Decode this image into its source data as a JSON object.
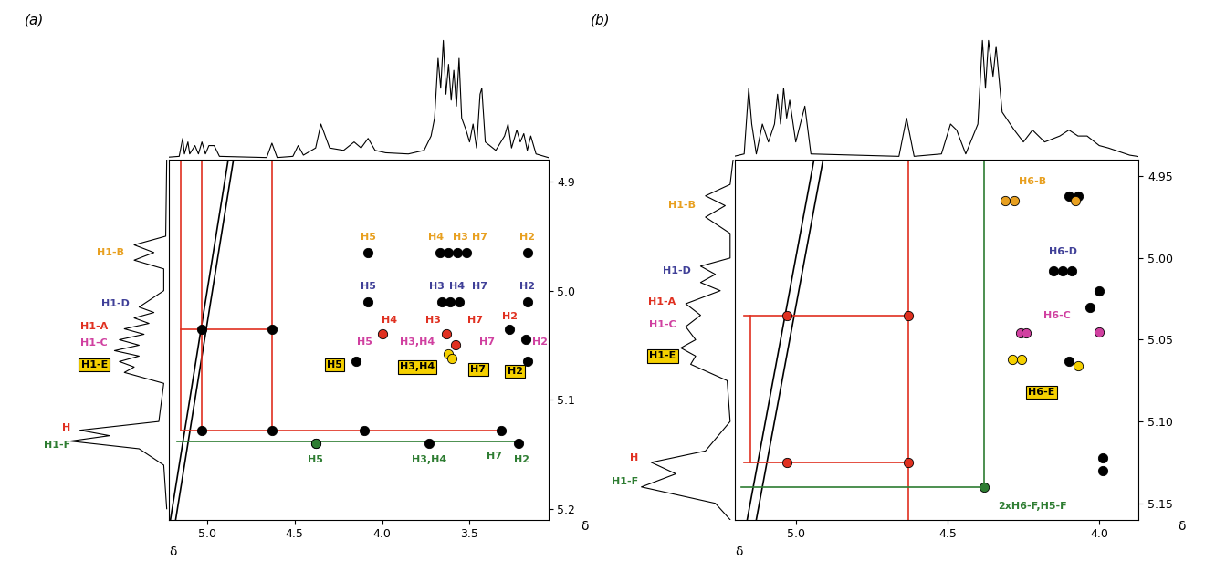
{
  "chart_data": [
    {
      "type": "scatter",
      "title": "(a)",
      "xlabel": "δ",
      "ylabel": "δ",
      "xlim": [
        5.22,
        3.05
      ],
      "ylim": [
        5.21,
        4.88
      ],
      "xticks": [
        5.0,
        4.5,
        4.0,
        3.5
      ],
      "yticks": [
        4.9,
        5.0,
        5.1,
        5.2
      ],
      "top_spectrum": {
        "tick_labels": false,
        "ylim": [
          0,
          1.1
        ],
        "x": [
          5.25,
          5.16,
          5.14,
          5.13,
          5.11,
          5.1,
          5.07,
          5.05,
          5.03,
          5.01,
          4.99,
          4.96,
          4.93,
          4.66,
          4.63,
          4.6,
          4.51,
          4.48,
          4.45,
          4.38,
          4.35,
          4.33,
          4.3,
          4.22,
          4.16,
          4.12,
          4.08,
          4.04,
          3.98,
          3.85,
          3.76,
          3.72,
          3.7,
          3.68,
          3.665,
          3.65,
          3.635,
          3.62,
          3.605,
          3.59,
          3.575,
          3.56,
          3.545,
          3.52,
          3.5,
          3.48,
          3.46,
          3.44,
          3.43,
          3.41,
          3.35,
          3.3,
          3.28,
          3.26,
          3.23,
          3.21,
          3.19,
          3.17,
          3.15,
          3.12,
          3.05
        ],
        "values": [
          0.02,
          0.03,
          0.18,
          0.05,
          0.15,
          0.05,
          0.12,
          0.05,
          0.15,
          0.05,
          0.12,
          0.12,
          0.03,
          0.02,
          0.14,
          0.02,
          0.03,
          0.12,
          0.04,
          0.1,
          0.3,
          0.22,
          0.1,
          0.08,
          0.15,
          0.1,
          0.18,
          0.08,
          0.06,
          0.05,
          0.08,
          0.2,
          0.35,
          0.85,
          0.6,
          1.0,
          0.55,
          0.8,
          0.5,
          0.75,
          0.45,
          0.85,
          0.35,
          0.25,
          0.15,
          0.3,
          0.1,
          0.55,
          0.6,
          0.15,
          0.08,
          0.2,
          0.3,
          0.1,
          0.25,
          0.15,
          0.22,
          0.08,
          0.2,
          0.05,
          0.02
        ]
      },
      "left_spectrum": {
        "tick_labels": false,
        "xlim": [
          1.1,
          0
        ],
        "y": [
          4.88,
          4.95,
          4.958,
          4.965,
          4.972,
          4.98,
          5.0,
          5.015,
          5.02,
          5.025,
          5.03,
          5.035,
          5.04,
          5.045,
          5.05,
          5.055,
          5.06,
          5.065,
          5.07,
          5.075,
          5.085,
          5.12,
          5.128,
          5.133,
          5.138,
          5.145,
          5.16,
          5.2
        ],
        "values": [
          0.02,
          0.03,
          0.35,
          0.15,
          0.35,
          0.05,
          0.05,
          0.3,
          0.15,
          0.35,
          0.2,
          0.45,
          0.25,
          0.5,
          0.3,
          0.55,
          0.3,
          0.5,
          0.35,
          0.45,
          0.05,
          0.1,
          0.9,
          0.6,
          1.0,
          0.3,
          0.05,
          0.02
        ],
        "annotations": [
          {
            "text": "H1-B",
            "x": 0.45,
            "y": 4.965,
            "color": "#e8a020"
          },
          {
            "text": "H1-D",
            "x": 0.4,
            "y": 5.012,
            "color": "#404098"
          },
          {
            "text": "H1-A",
            "x": 0.62,
            "y": 5.033,
            "color": "#e03020"
          },
          {
            "text": "H1-C",
            "x": 0.62,
            "y": 5.048,
            "color": "#d040a0"
          },
          {
            "text": "H",
            "x": 1.0,
            "y": 5.126,
            "color": "#e03020"
          },
          {
            "text": "H1-F",
            "x": 1.0,
            "y": 5.142,
            "color": "#2e7d32"
          }
        ],
        "boxed_annotations": [
          {
            "text": "H1-E",
            "x": 0.62,
            "y": 5.068,
            "color": "#f5d000"
          }
        ]
      },
      "series": [
        {
          "color": "#000000",
          "x": [
            4.08,
            3.67,
            3.62,
            3.57,
            3.52,
            3.17,
            4.08,
            3.66,
            3.61,
            3.56,
            3.17,
            3.27,
            3.18,
            3.17,
            4.15,
            4.38,
            3.73,
            3.22,
            5.03,
            4.63,
            4.1,
            3.32,
            5.03,
            4.63
          ],
          "y": [
            4.965,
            4.965,
            4.965,
            4.965,
            4.965,
            4.965,
            5.01,
            5.01,
            5.01,
            5.01,
            5.01,
            5.035,
            5.045,
            5.065,
            5.065,
            5.14,
            5.14,
            5.14,
            5.128,
            5.128,
            5.128,
            5.128,
            5.035,
            5.035
          ]
        },
        {
          "color": "#e03020",
          "x": [
            4.0,
            3.63,
            3.58
          ],
          "y": [
            5.04,
            5.04,
            5.05
          ]
        },
        {
          "color": "#f5d000",
          "x": [
            3.62,
            3.6
          ],
          "y": [
            5.058,
            5.062
          ]
        },
        {
          "color": "#2e7d32",
          "x": [
            4.38
          ],
          "y": [
            5.14
          ]
        }
      ],
      "connectors": [
        {
          "color": "#000000",
          "x": [
            5.22,
            4.88
          ],
          "y": [
            5.22,
            4.88
          ]
        },
        {
          "color": "#000000",
          "x": [
            5.19,
            4.85
          ],
          "y": [
            5.22,
            4.88
          ]
        },
        {
          "color": "#e03020",
          "x": [
            5.15,
            5.15
          ],
          "y": [
            4.88,
            5.128
          ]
        },
        {
          "color": "#e03020",
          "x": [
            5.03,
            5.03
          ],
          "y": [
            4.88,
            5.128
          ]
        },
        {
          "color": "#e03020",
          "x": [
            4.63,
            4.63
          ],
          "y": [
            4.88,
            5.128
          ]
        },
        {
          "color": "#e03020",
          "x": [
            5.15,
            4.63
          ],
          "y": [
            5.035,
            5.035
          ]
        },
        {
          "color": "#e03020",
          "x": [
            5.15,
            3.32
          ],
          "y": [
            5.128,
            5.128
          ]
        },
        {
          "color": "#2e7d32",
          "x": [
            5.17,
            3.2
          ],
          "y": [
            5.138,
            5.138
          ]
        }
      ],
      "annotations": [
        {
          "text": "H5",
          "x": 4.08,
          "y": 4.951,
          "color": "#e8a020"
        },
        {
          "text": "H4",
          "x": 3.69,
          "y": 4.951,
          "color": "#e8a020"
        },
        {
          "text": "H3",
          "x": 3.55,
          "y": 4.951,
          "color": "#e8a020"
        },
        {
          "text": "H7",
          "x": 3.44,
          "y": 4.951,
          "color": "#e8a020"
        },
        {
          "text": "H2",
          "x": 3.17,
          "y": 4.951,
          "color": "#e8a020"
        },
        {
          "text": "H5",
          "x": 4.08,
          "y": 4.996,
          "color": "#404098"
        },
        {
          "text": "H3",
          "x": 3.69,
          "y": 4.996,
          "color": "#404098"
        },
        {
          "text": "H4",
          "x": 3.57,
          "y": 4.996,
          "color": "#404098"
        },
        {
          "text": "H7",
          "x": 3.44,
          "y": 4.996,
          "color": "#404098"
        },
        {
          "text": "H2",
          "x": 3.17,
          "y": 4.996,
          "color": "#404098"
        },
        {
          "text": "H4",
          "x": 3.96,
          "y": 5.027,
          "color": "#e03020"
        },
        {
          "text": "H3",
          "x": 3.71,
          "y": 5.027,
          "color": "#e03020"
        },
        {
          "text": "H7",
          "x": 3.47,
          "y": 5.027,
          "color": "#e03020"
        },
        {
          "text": "H2",
          "x": 3.27,
          "y": 5.024,
          "color": "#e03020"
        },
        {
          "text": "H5",
          "x": 4.1,
          "y": 5.047,
          "color": "#d040a0"
        },
        {
          "text": "H3,H4",
          "x": 3.8,
          "y": 5.047,
          "color": "#d040a0"
        },
        {
          "text": "H7",
          "x": 3.4,
          "y": 5.047,
          "color": "#d040a0"
        },
        {
          "text": "H2",
          "x": 3.1,
          "y": 5.047,
          "color": "#d040a0"
        },
        {
          "text": "H5",
          "x": 4.38,
          "y": 5.155,
          "color": "#2e7d32"
        },
        {
          "text": "H3,H4",
          "x": 3.73,
          "y": 5.155,
          "color": "#2e7d32"
        },
        {
          "text": "H7",
          "x": 3.36,
          "y": 5.152,
          "color": "#2e7d32"
        },
        {
          "text": "H2",
          "x": 3.2,
          "y": 5.155,
          "color": "#2e7d32"
        }
      ],
      "boxed_annotations": [
        {
          "text": "H5",
          "x": 4.27,
          "y": 5.068,
          "color": "#f5d000"
        },
        {
          "text": "H3,H4",
          "x": 3.8,
          "y": 5.07,
          "color": "#f5d000"
        },
        {
          "text": "H7",
          "x": 3.45,
          "y": 5.072,
          "color": "#f5d000"
        },
        {
          "text": "H2",
          "x": 3.24,
          "y": 5.074,
          "color": "#f5d000"
        }
      ]
    },
    {
      "type": "scatter",
      "title": "(b)",
      "xlabel": "δ",
      "ylabel": "δ",
      "xlim": [
        5.2,
        3.87
      ],
      "ylim": [
        5.16,
        4.94
      ],
      "xticks": [
        5.0,
        4.5,
        4.0
      ],
      "yticks": [
        4.95,
        {
          "value": 5.0,
          "label": "5.00"
        },
        5.05,
        {
          "value": 5.1,
          "label": "5.10"
        },
        5.15
      ],
      "top_spectrum": {
        "tick_labels": false,
        "ylim": [
          0,
          1.1
        ],
        "x": [
          5.22,
          5.17,
          5.155,
          5.145,
          5.13,
          5.11,
          5.09,
          5.07,
          5.06,
          5.05,
          5.04,
          5.03,
          5.02,
          5.0,
          4.97,
          4.95,
          4.66,
          4.635,
          4.61,
          4.52,
          4.49,
          4.47,
          4.44,
          4.4,
          4.385,
          4.375,
          4.365,
          4.35,
          4.34,
          4.32,
          4.28,
          4.25,
          4.22,
          4.18,
          4.13,
          4.1,
          4.07,
          4.04,
          4.0,
          3.97,
          3.9,
          3.85
        ],
        "values": [
          0.02,
          0.05,
          0.6,
          0.3,
          0.05,
          0.3,
          0.15,
          0.3,
          0.55,
          0.3,
          0.6,
          0.35,
          0.5,
          0.15,
          0.45,
          0.05,
          0.03,
          0.35,
          0.03,
          0.05,
          0.3,
          0.25,
          0.05,
          0.3,
          1.0,
          0.6,
          1.0,
          0.7,
          0.95,
          0.4,
          0.25,
          0.15,
          0.25,
          0.15,
          0.2,
          0.25,
          0.2,
          0.2,
          0.12,
          0.1,
          0.04,
          0.02
        ]
      },
      "left_spectrum": {
        "tick_labels": false,
        "xlim": [
          1.1,
          0
        ],
        "y": [
          4.94,
          4.955,
          4.962,
          4.968,
          4.975,
          4.985,
          5.0,
          5.005,
          5.01,
          5.015,
          5.02,
          5.028,
          5.035,
          5.042,
          5.05,
          5.055,
          5.06,
          5.065,
          5.075,
          5.1,
          5.118,
          5.125,
          5.132,
          5.14,
          5.15,
          5.16
        ],
        "values": [
          0.02,
          0.05,
          0.3,
          0.1,
          0.3,
          0.05,
          0.05,
          0.35,
          0.2,
          0.35,
          0.15,
          0.5,
          0.35,
          0.5,
          0.4,
          0.55,
          0.4,
          0.45,
          0.08,
          0.05,
          0.3,
          0.85,
          0.6,
          0.95,
          0.2,
          0.05
        ],
        "annotations": [
          {
            "text": "H1-B",
            "x": 0.4,
            "y": 4.968,
            "color": "#e8a020"
          },
          {
            "text": "H1-D",
            "x": 0.45,
            "y": 5.008,
            "color": "#404098"
          },
          {
            "text": "H1-A",
            "x": 0.6,
            "y": 5.027,
            "color": "#e03020"
          },
          {
            "text": "H1-C",
            "x": 0.6,
            "y": 5.041,
            "color": "#d040a0"
          },
          {
            "text": "H",
            "x": 0.98,
            "y": 5.122,
            "color": "#e03020"
          },
          {
            "text": "H1-F",
            "x": 0.98,
            "y": 5.137,
            "color": "#2e7d32"
          }
        ],
        "boxed_annotations": [
          {
            "text": "H1-E",
            "x": 0.6,
            "y": 5.06,
            "color": "#f5d000"
          }
        ]
      },
      "series": [
        {
          "color": "#000000",
          "x": [
            4.1,
            4.07,
            4.15,
            4.12,
            4.09,
            4.03,
            4.0,
            4.1,
            3.99,
            3.99
          ],
          "y": [
            4.962,
            4.962,
            5.008,
            5.008,
            5.008,
            5.03,
            5.02,
            5.063,
            5.13,
            5.122
          ]
        },
        {
          "color": "#e8a020",
          "x": [
            4.31,
            4.28,
            4.08
          ],
          "y": [
            4.965,
            4.965,
            4.965
          ]
        },
        {
          "color": "#d040a0",
          "x": [
            4.26,
            4.24,
            4.0
          ],
          "y": [
            5.046,
            5.046,
            5.045
          ]
        },
        {
          "color": "#f5d000",
          "x": [
            4.285,
            4.255,
            4.07
          ],
          "y": [
            5.062,
            5.062,
            5.066
          ]
        },
        {
          "color": "#e03020",
          "x": [
            5.03,
            4.63,
            5.03,
            4.63
          ],
          "y": [
            5.035,
            5.035,
            5.125,
            5.125
          ]
        },
        {
          "color": "#2e7d32",
          "x": [
            4.38
          ],
          "y": [
            5.14
          ]
        }
      ],
      "connectors": [
        {
          "color": "#000000",
          "x": [
            5.2,
            4.94
          ],
          "y": [
            5.2,
            4.94
          ]
        },
        {
          "color": "#000000",
          "x": [
            5.17,
            4.91
          ],
          "y": [
            5.2,
            4.94
          ]
        },
        {
          "color": "#e03020",
          "x": [
            4.63,
            4.63
          ],
          "y": [
            4.94,
            5.16
          ]
        },
        {
          "color": "#e03020",
          "x": [
            5.17,
            4.63
          ],
          "y": [
            5.035,
            5.035
          ]
        },
        {
          "color": "#e03020",
          "x": [
            5.17,
            4.63
          ],
          "y": [
            5.125,
            5.125
          ]
        },
        {
          "color": "#e03020",
          "x": [
            5.15,
            5.15
          ],
          "y": [
            5.035,
            5.125
          ]
        },
        {
          "color": "#2e7d32",
          "x": [
            4.38,
            4.38
          ],
          "y": [
            4.94,
            5.14
          ]
        },
        {
          "color": "#2e7d32",
          "x": [
            5.18,
            4.38
          ],
          "y": [
            5.14,
            5.14
          ]
        }
      ],
      "annotations": [
        {
          "text": "H6-B",
          "x": 4.22,
          "y": 4.953,
          "color": "#e8a020"
        },
        {
          "text": "H6-D",
          "x": 4.12,
          "y": 4.996,
          "color": "#404098"
        },
        {
          "text": "H6-C",
          "x": 4.14,
          "y": 5.035,
          "color": "#d040a0"
        },
        {
          "text": "2xH6-F,H5-F",
          "x": 4.22,
          "y": 5.152,
          "color": "#2e7d32"
        }
      ],
      "boxed_annotations": [
        {
          "text": "H6-E",
          "x": 4.19,
          "y": 5.082,
          "color": "#f5d000"
        }
      ]
    }
  ]
}
